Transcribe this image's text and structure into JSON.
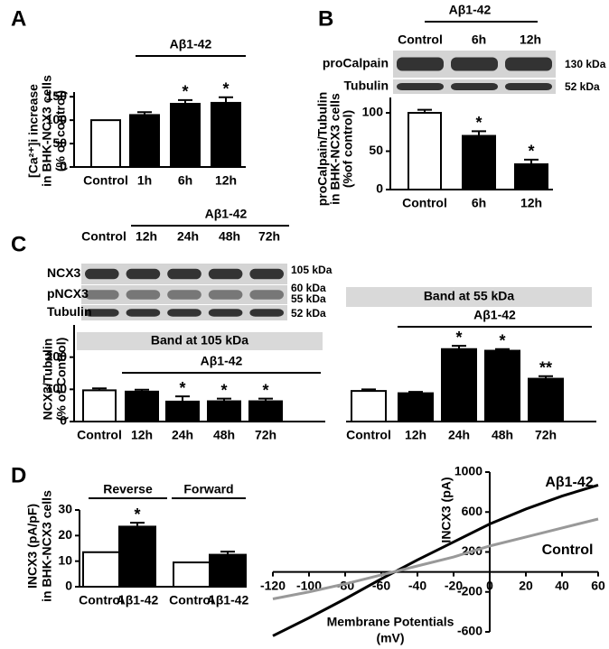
{
  "panels": [
    "A",
    "B",
    "C",
    "D"
  ],
  "blots": [
    {
      "group_label": "Aβ1-42",
      "lanes": [
        "Control",
        "6h",
        "12h"
      ],
      "bands": [
        "proCalpain",
        "Tubulin"
      ],
      "sizes": [
        "130 kDa",
        "52 kDa"
      ]
    },
    {
      "group_label": "Aβ1-42",
      "lanes": [
        "Control",
        "12h",
        "24h",
        "48h",
        "72h"
      ],
      "bands": [
        "NCX3",
        "pNCX3",
        "Tubulin"
      ],
      "sizes": [
        "105 kDa",
        "60 kDa",
        "55 kDa",
        "52 kDa"
      ]
    }
  ],
  "chart_data": [
    {
      "type": "bar",
      "ylabel": [
        "[Ca²⁺]i increase",
        "in BHK-NCX3 cells",
        "(% of control)"
      ],
      "categories": [
        "Control",
        "1h",
        "6h",
        "12h"
      ],
      "values": [
        100,
        111,
        135,
        137
      ],
      "errors": [
        null,
        6,
        8,
        12
      ],
      "colors": [
        "#ffffff",
        "#000000",
        "#000000",
        "#000000"
      ],
      "markers": [
        null,
        null,
        "*",
        "*"
      ],
      "bracket_label": "Aβ1-42",
      "ylim": [
        0,
        160
      ],
      "yticks": [
        0,
        50,
        100,
        150
      ]
    },
    {
      "type": "bar",
      "ylabel": [
        "proCalpain/Tubulin",
        "in BHK-NCX3 cells",
        "(%of control)"
      ],
      "categories": [
        "Control",
        "6h",
        "12h"
      ],
      "values": [
        100,
        70,
        33
      ],
      "errors": [
        4,
        6,
        6
      ],
      "colors": [
        "#ffffff",
        "#000000",
        "#000000"
      ],
      "markers": [
        null,
        "*",
        "*"
      ],
      "ylim": [
        0,
        120
      ],
      "yticks": [
        0,
        50,
        100
      ]
    },
    {
      "type": "bar",
      "title": "Band at 105 kDa",
      "ylabel": [
        "NCX3/Tubulin",
        "(% of Control)"
      ],
      "categories": [
        "Control",
        "12h",
        "24h",
        "48h",
        "72h"
      ],
      "values": [
        97,
        93,
        62,
        63,
        63
      ],
      "errors": [
        6,
        6,
        16,
        8,
        8
      ],
      "colors": [
        "#ffffff",
        "#000000",
        "#000000",
        "#000000",
        "#000000"
      ],
      "markers": [
        null,
        null,
        "*",
        "*",
        "*"
      ],
      "bracket_label": "Aβ1-42",
      "ylim": [
        0,
        300
      ],
      "yticks": [
        0,
        100,
        200
      ]
    },
    {
      "type": "bar",
      "title": "Band at 55 kDa",
      "categories": [
        "Control",
        "12h",
        "24h",
        "48h",
        "72h"
      ],
      "values": [
        95,
        88,
        225,
        220,
        133
      ],
      "errors": [
        5,
        4,
        10,
        5,
        8
      ],
      "colors": [
        "#ffffff",
        "#000000",
        "#000000",
        "#000000",
        "#000000"
      ],
      "markers": [
        null,
        null,
        "*",
        "*",
        "**"
      ],
      "bracket_label": "Aβ1-42",
      "ylim": [
        0,
        300
      ]
    },
    {
      "type": "bar",
      "ylabel": [
        "INCX3 (pA/pF)",
        "in BHK-NCX3 cells"
      ],
      "groups": [
        "Reverse",
        "Forward"
      ],
      "categories": [
        "Control",
        "Aβ1-42",
        "Control",
        "Aβ1-42"
      ],
      "values": [
        13.5,
        23.5,
        9.5,
        12.5
      ],
      "errors": [
        null,
        1.5,
        null,
        1.2
      ],
      "colors": [
        "#ffffff",
        "#000000",
        "#ffffff",
        "#000000"
      ],
      "markers": [
        null,
        "*",
        null,
        null
      ],
      "ylim": [
        0,
        30
      ],
      "yticks": [
        0,
        10,
        20,
        30
      ]
    },
    {
      "type": "line",
      "xlabel": [
        "Membrane Potentials",
        "(mV)"
      ],
      "ylabel": "INCX3 (pA)",
      "x": [
        -120,
        -100,
        -80,
        -60,
        -40,
        -20,
        0,
        20,
        40,
        60
      ],
      "series": [
        {
          "name": "Aβ1-42",
          "color": "#000000",
          "values": [
            -640,
            -460,
            -270,
            -70,
            120,
            300,
            480,
            630,
            760,
            870
          ]
        },
        {
          "name": "Control",
          "color": "#999999",
          "values": [
            -270,
            -200,
            -120,
            -30,
            60,
            150,
            260,
            350,
            440,
            530
          ]
        }
      ],
      "xlim": [
        -120,
        60
      ],
      "ylim": [
        -600,
        1000
      ],
      "xticks": [
        -120,
        -100,
        -80,
        -60,
        -40,
        -20,
        0,
        20,
        40,
        60
      ],
      "yticks": [
        -600,
        -200,
        200,
        600,
        1000
      ]
    }
  ]
}
